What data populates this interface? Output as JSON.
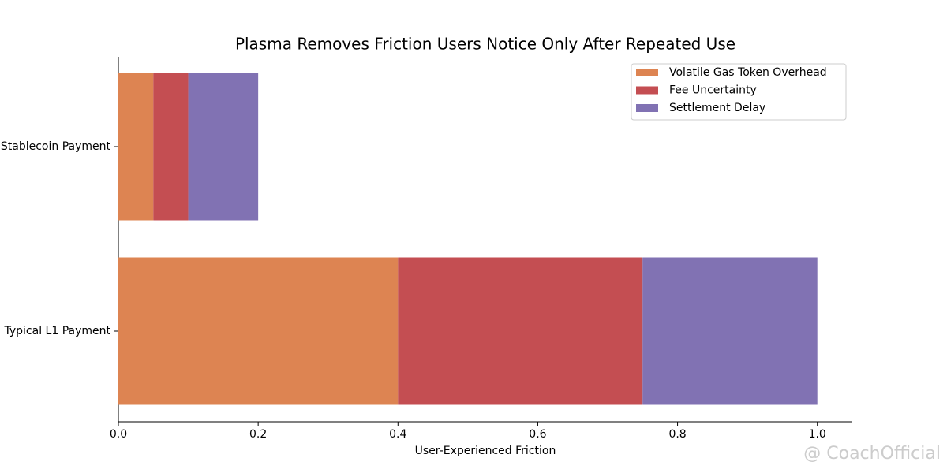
{
  "chart_data": {
    "type": "stacked-barh",
    "title": "Plasma Removes Friction Users Notice Only After Repeated Use",
    "xlabel": "User-Experienced Friction",
    "categories": [
      "Stablecoin Payment",
      "Typical L1 Payment"
    ],
    "series": [
      {
        "name": "Volatile Gas Token Overhead",
        "color": "#dd8452",
        "values": [
          0.05,
          0.4
        ]
      },
      {
        "name": "Fee Uncertainty",
        "color": "#c44e52",
        "values": [
          0.05,
          0.35
        ]
      },
      {
        "name": "Settlement Delay",
        "color": "#8172b3",
        "values": [
          0.1,
          0.25
        ]
      }
    ],
    "xlim": [
      0,
      1.05
    ],
    "xticks": [
      {
        "value": 0,
        "label": "0.0"
      },
      0.2,
      0.4,
      0.6,
      0.8,
      {
        "value": 1,
        "label": "1.0"
      }
    ],
    "legend": "upper-right",
    "watermark": "@ CoachOfficial"
  }
}
